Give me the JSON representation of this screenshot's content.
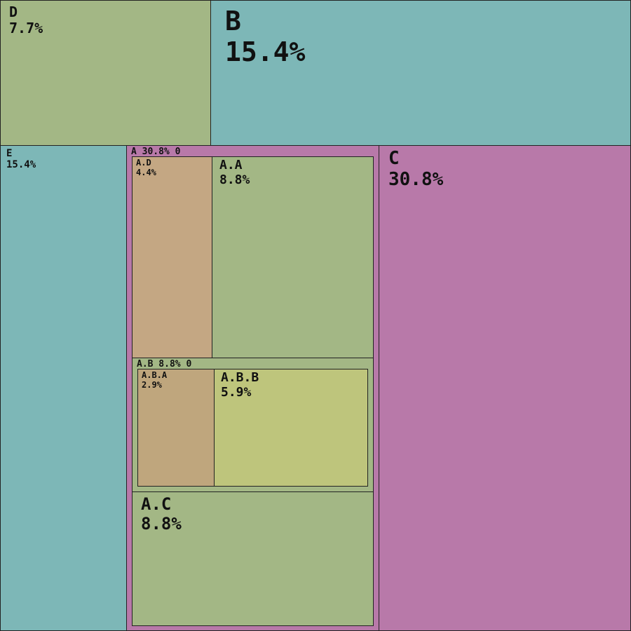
{
  "chart_data": {
    "type": "treemap",
    "colors": {
      "green": "#a3b785",
      "teal": "#7db7b7",
      "pink": "#b879a9",
      "tan": "#c4a783",
      "tan_dark": "#bfa67d",
      "yellow_green": "#bec57c"
    },
    "nodes": [
      {
        "id": "D",
        "label": "D",
        "value_text": "7.7%",
        "value": 7.7,
        "color": "green",
        "children": []
      },
      {
        "id": "B",
        "label": "B",
        "value_text": "15.4%",
        "value": 15.4,
        "color": "teal",
        "children": []
      },
      {
        "id": "E",
        "label": "E",
        "value_text": "15.4%",
        "value": 15.4,
        "color": "teal",
        "children": []
      },
      {
        "id": "A",
        "label": "A 30.8% 0",
        "value": 30.8,
        "color": "pink",
        "children": [
          {
            "id": "A.D",
            "label": "A.D",
            "value_text": "4.4%",
            "value": 4.4,
            "color": "tan",
            "children": []
          },
          {
            "id": "A.A",
            "label": "A.A",
            "value_text": "8.8%",
            "value": 8.8,
            "color": "green",
            "children": []
          },
          {
            "id": "A.B",
            "label": "A.B 8.8% 0",
            "value": 8.8,
            "color": "green",
            "children": [
              {
                "id": "A.B.A",
                "label": "A.B.A",
                "value_text": "2.9%",
                "value": 2.9,
                "color": "tan_dark",
                "children": []
              },
              {
                "id": "A.B.B",
                "label": "A.B.B",
                "value_text": "5.9%",
                "value": 5.9,
                "color": "yellow_green",
                "children": []
              }
            ]
          },
          {
            "id": "A.C",
            "label": "A.C",
            "value_text": "8.8%",
            "value": 8.8,
            "color": "green",
            "children": []
          }
        ]
      },
      {
        "id": "C",
        "label": "C",
        "value_text": "30.8%",
        "value": 30.8,
        "color": "pink",
        "children": []
      }
    ]
  }
}
